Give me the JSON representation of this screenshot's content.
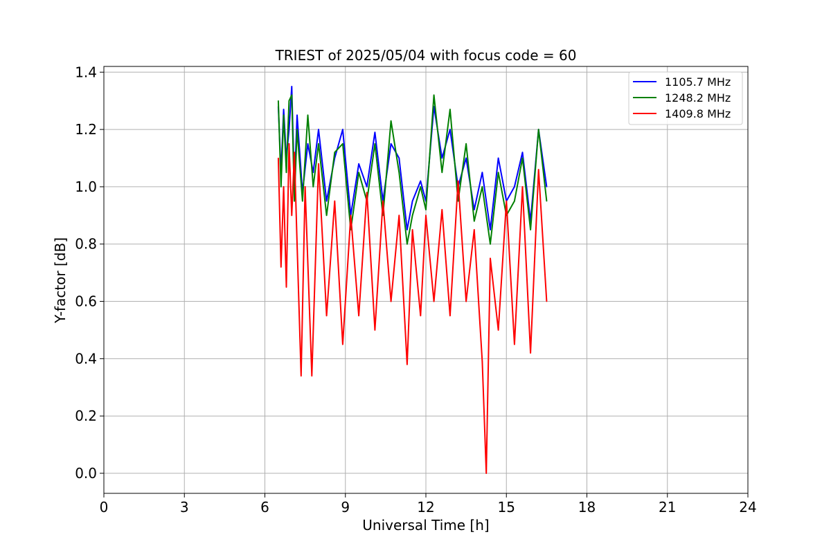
{
  "chart_data": {
    "type": "line",
    "title": "TRIEST of 2025/05/04 with focus code = 60",
    "xlabel": "Universal Time [h]",
    "ylabel": "Y-factor [dB]",
    "xlim": [
      0,
      24
    ],
    "ylim": [
      -0.07,
      1.42
    ],
    "x_ticks": [
      0,
      3,
      6,
      9,
      12,
      15,
      18,
      21,
      24
    ],
    "x_tick_labels": [
      "0",
      "3",
      "6",
      "9",
      "12",
      "15",
      "18",
      "21",
      "24"
    ],
    "y_ticks": [
      0.0,
      0.2,
      0.4,
      0.6,
      0.8,
      1.0,
      1.2,
      1.4
    ],
    "y_tick_labels": [
      "0.0",
      "0.2",
      "0.4",
      "0.6",
      "0.8",
      "1.0",
      "1.2",
      "1.4"
    ],
    "grid": true,
    "legend_position": "top-right",
    "x_range_covered": [
      6.5,
      16.5
    ],
    "series": [
      {
        "name": "1105.7 MHz",
        "color": "#0000ff",
        "x": [
          6.5,
          6.6,
          6.7,
          6.8,
          6.9,
          7.0,
          7.1,
          7.2,
          7.4,
          7.6,
          7.8,
          8.0,
          8.3,
          8.6,
          8.9,
          9.2,
          9.5,
          9.8,
          10.1,
          10.4,
          10.7,
          11.0,
          11.3,
          11.5,
          11.8,
          12.0,
          12.3,
          12.6,
          12.9,
          13.2,
          13.5,
          13.8,
          14.1,
          14.4,
          14.7,
          15.0,
          15.3,
          15.6,
          15.9,
          16.2,
          16.5
        ],
        "values": [
          1.28,
          1.05,
          1.27,
          1.1,
          1.2,
          1.35,
          1.0,
          1.25,
          0.98,
          1.15,
          1.05,
          1.2,
          0.95,
          1.1,
          1.2,
          0.9,
          1.08,
          1.0,
          1.19,
          0.95,
          1.15,
          1.1,
          0.85,
          0.95,
          1.02,
          0.95,
          1.28,
          1.1,
          1.2,
          1.0,
          1.1,
          0.92,
          1.05,
          0.85,
          1.1,
          0.95,
          1.0,
          1.12,
          0.88,
          1.2,
          1.0
        ]
      },
      {
        "name": "1248.2 MHz",
        "color": "#008000",
        "x": [
          6.5,
          6.6,
          6.7,
          6.8,
          6.9,
          7.0,
          7.1,
          7.2,
          7.4,
          7.6,
          7.8,
          8.0,
          8.3,
          8.6,
          8.9,
          9.2,
          9.5,
          9.8,
          10.1,
          10.4,
          10.7,
          11.0,
          11.3,
          11.5,
          11.8,
          12.0,
          12.3,
          12.6,
          12.9,
          13.2,
          13.5,
          13.8,
          14.1,
          14.4,
          14.7,
          15.0,
          15.3,
          15.6,
          15.9,
          16.2,
          16.5
        ],
        "values": [
          1.3,
          1.0,
          1.25,
          1.05,
          1.3,
          1.32,
          0.95,
          1.2,
          0.95,
          1.25,
          1.0,
          1.15,
          0.9,
          1.12,
          1.15,
          0.85,
          1.05,
          0.95,
          1.15,
          0.9,
          1.23,
          1.05,
          0.8,
          0.9,
          1.0,
          0.92,
          1.32,
          1.05,
          1.27,
          0.95,
          1.15,
          0.88,
          1.0,
          0.8,
          1.05,
          0.9,
          0.95,
          1.1,
          0.85,
          1.2,
          0.95
        ]
      },
      {
        "name": "1409.8 MHz",
        "color": "#ff0000",
        "x": [
          6.5,
          6.6,
          6.7,
          6.8,
          6.9,
          7.0,
          7.1,
          7.2,
          7.35,
          7.5,
          7.75,
          8.0,
          8.3,
          8.6,
          8.9,
          9.2,
          9.5,
          9.8,
          10.1,
          10.4,
          10.7,
          11.0,
          11.3,
          11.5,
          11.8,
          12.0,
          12.3,
          12.6,
          12.9,
          13.2,
          13.5,
          13.8,
          14.1,
          14.25,
          14.4,
          14.7,
          15.0,
          15.3,
          15.6,
          15.9,
          16.2,
          16.5
        ],
        "values": [
          1.1,
          0.72,
          1.0,
          0.65,
          1.15,
          0.9,
          1.12,
          0.8,
          0.34,
          1.0,
          0.34,
          1.08,
          0.55,
          0.95,
          0.45,
          0.9,
          0.55,
          0.98,
          0.5,
          0.95,
          0.6,
          0.9,
          0.38,
          0.85,
          0.55,
          0.9,
          0.6,
          0.92,
          0.55,
          1.02,
          0.6,
          0.85,
          0.39,
          0.0,
          0.75,
          0.5,
          0.95,
          0.45,
          1.0,
          0.42,
          1.06,
          0.6
        ]
      }
    ]
  }
}
